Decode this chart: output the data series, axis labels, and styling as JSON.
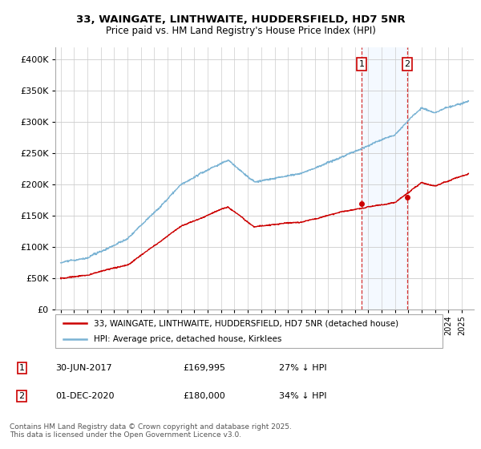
{
  "title_line1": "33, WAINGATE, LINTHWAITE, HUDDERSFIELD, HD7 5NR",
  "title_line2": "Price paid vs. HM Land Registry's House Price Index (HPI)",
  "legend_label1": "33, WAINGATE, LINTHWAITE, HUDDERSFIELD, HD7 5NR (detached house)",
  "legend_label2": "HPI: Average price, detached house, Kirklees",
  "annotation1_date": "30-JUN-2017",
  "annotation1_price": "£169,995",
  "annotation1_hpi": "27% ↓ HPI",
  "annotation2_date": "01-DEC-2020",
  "annotation2_price": "£180,000",
  "annotation2_hpi": "34% ↓ HPI",
  "footnote": "Contains HM Land Registry data © Crown copyright and database right 2025.\nThis data is licensed under the Open Government Licence v3.0.",
  "hpi_color": "#7ab3d4",
  "price_color": "#cc0000",
  "shaded_color": "#ddeeff",
  "vline_color": "#cc0000",
  "grid_color": "#cccccc",
  "ylim_min": 0,
  "ylim_max": 420000,
  "sale1_year": 2017.5,
  "sale1_price": 169995,
  "sale2_year": 2020.92,
  "sale2_price": 180000
}
